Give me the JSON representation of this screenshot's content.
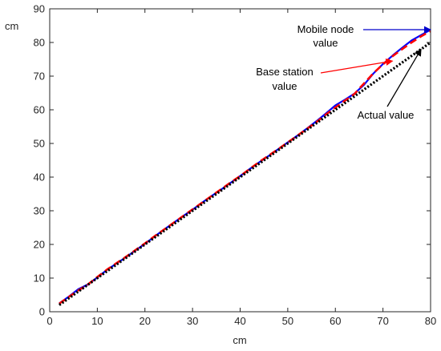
{
  "chart_data": {
    "type": "line",
    "xlabel": "cm",
    "ylabel": "cm",
    "xlim": [
      0,
      80
    ],
    "ylim": [
      0,
      90
    ],
    "xticks": [
      0,
      10,
      20,
      30,
      40,
      50,
      60,
      70,
      80
    ],
    "yticks": [
      0,
      10,
      20,
      30,
      40,
      50,
      60,
      70,
      80,
      90
    ],
    "grid": false,
    "series": [
      {
        "color": "#0000ff",
        "style": "solid",
        "x": [
          2,
          4,
          6,
          8,
          10,
          12,
          14,
          16,
          18,
          20,
          22,
          24,
          26,
          28,
          30,
          32,
          34,
          36,
          38,
          40,
          42,
          44,
          46,
          48,
          50,
          52,
          54,
          56,
          58,
          60,
          62,
          64,
          66,
          68,
          70,
          72,
          74,
          76,
          78,
          80
        ],
        "y": [
          2.5,
          4.5,
          6.7,
          8.1,
          10.2,
          12.4,
          14.3,
          16.2,
          18.2,
          20.2,
          22.3,
          24.4,
          26.4,
          28.4,
          30.3,
          32.4,
          34.4,
          36.3,
          38.3,
          40.3,
          42.4,
          44.4,
          46.3,
          48.3,
          50.3,
          52.3,
          54.4,
          56.6,
          58.9,
          61.3,
          63.0,
          64.8,
          67.4,
          70.8,
          73.6,
          76.1,
          78.4,
          80.6,
          82.2,
          83.8
        ]
      },
      {
        "color": "#ff0000",
        "style": "dashed",
        "x": [
          2,
          4,
          6,
          8,
          10,
          12,
          14,
          16,
          18,
          20,
          22,
          24,
          26,
          28,
          30,
          32,
          34,
          36,
          38,
          40,
          42,
          44,
          46,
          48,
          50,
          52,
          54,
          56,
          58,
          60,
          62,
          64,
          66,
          68,
          70,
          72,
          74,
          76,
          78,
          80
        ],
        "y": [
          2.4,
          4.4,
          6.3,
          8.1,
          10.3,
          12.5,
          14.4,
          16.3,
          18.3,
          20.3,
          22.4,
          24.4,
          26.4,
          28.4,
          30.4,
          32.4,
          34.4,
          36.4,
          38.4,
          40.3,
          42.4,
          44.5,
          46.4,
          48.3,
          50.3,
          52.3,
          54.3,
          56.3,
          58.6,
          60.7,
          62.7,
          64.7,
          67.8,
          70.9,
          73.5,
          75.9,
          78.0,
          80.0,
          81.8,
          83.4
        ]
      },
      {
        "color": "#000000",
        "style": "dotted",
        "x": [
          2,
          80
        ],
        "y": [
          2,
          80
        ]
      }
    ],
    "annotations": [
      {
        "lines": [
          "Mobile node",
          "value"
        ],
        "target_x": 80,
        "target_y": 83.8,
        "arrow_color": "#0000cc"
      },
      {
        "lines": [
          "Base station",
          "value"
        ],
        "target_x": 72,
        "target_y": 74.5,
        "arrow_color": "#ff0000"
      },
      {
        "lines": [
          "Actual value"
        ],
        "target_x": 78,
        "target_y": 78,
        "arrow_color": "#000000"
      }
    ]
  }
}
